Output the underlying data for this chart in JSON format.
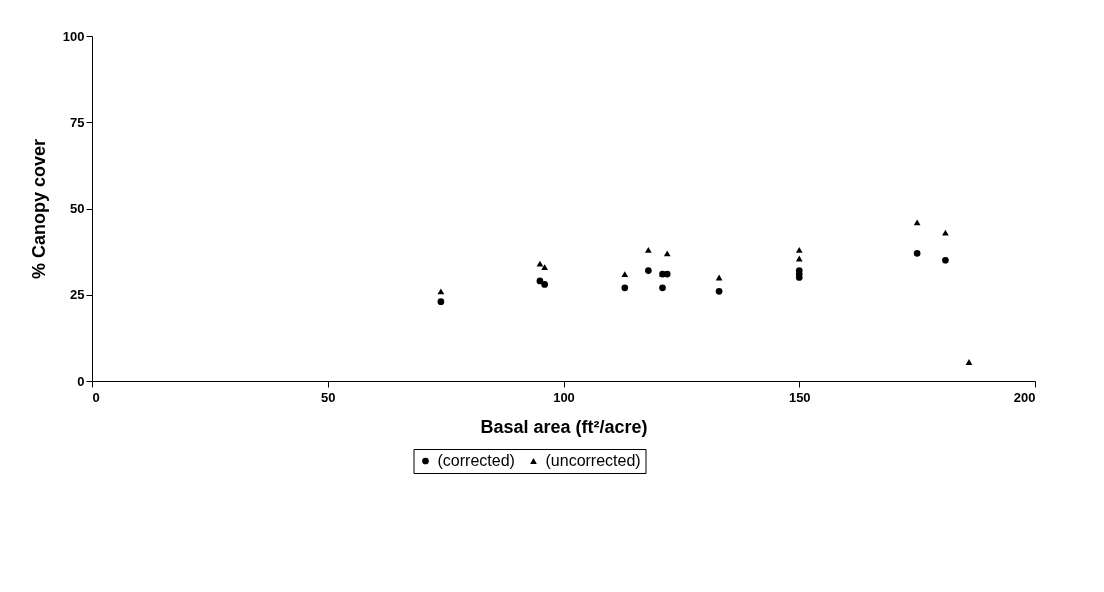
{
  "chart_data": {
    "type": "scatter",
    "xlabel": "Basal area (ft²/acre)",
    "ylabel": "% Canopy cover",
    "xlim": [
      0,
      200
    ],
    "xticks": [
      0,
      50,
      100,
      150,
      200
    ],
    "ylim": [
      0,
      100
    ],
    "yticks": [
      0,
      25,
      50,
      75,
      100
    ],
    "grid": false,
    "legend": "bottom",
    "series": [
      {
        "name": "(corrected)",
        "color": "#000000",
        "marker": "circle",
        "x": [
          74,
          95,
          96,
          113,
          118,
          121,
          122,
          121,
          133,
          150,
          150,
          150,
          175,
          181
        ],
        "values": [
          23,
          29,
          28,
          27,
          32,
          31,
          31,
          27,
          26,
          32,
          31,
          30,
          37,
          35
        ]
      },
      {
        "name": "(uncorrected)",
        "color": "#000000",
        "marker": "triangle",
        "x": [
          74,
          95,
          96,
          113,
          118,
          121,
          122,
          133,
          150,
          150,
          175,
          181,
          186
        ],
        "values": [
          26,
          34,
          33,
          31,
          38,
          31,
          37,
          30,
          38,
          35.5,
          46,
          43,
          5.5
        ]
      }
    ]
  }
}
